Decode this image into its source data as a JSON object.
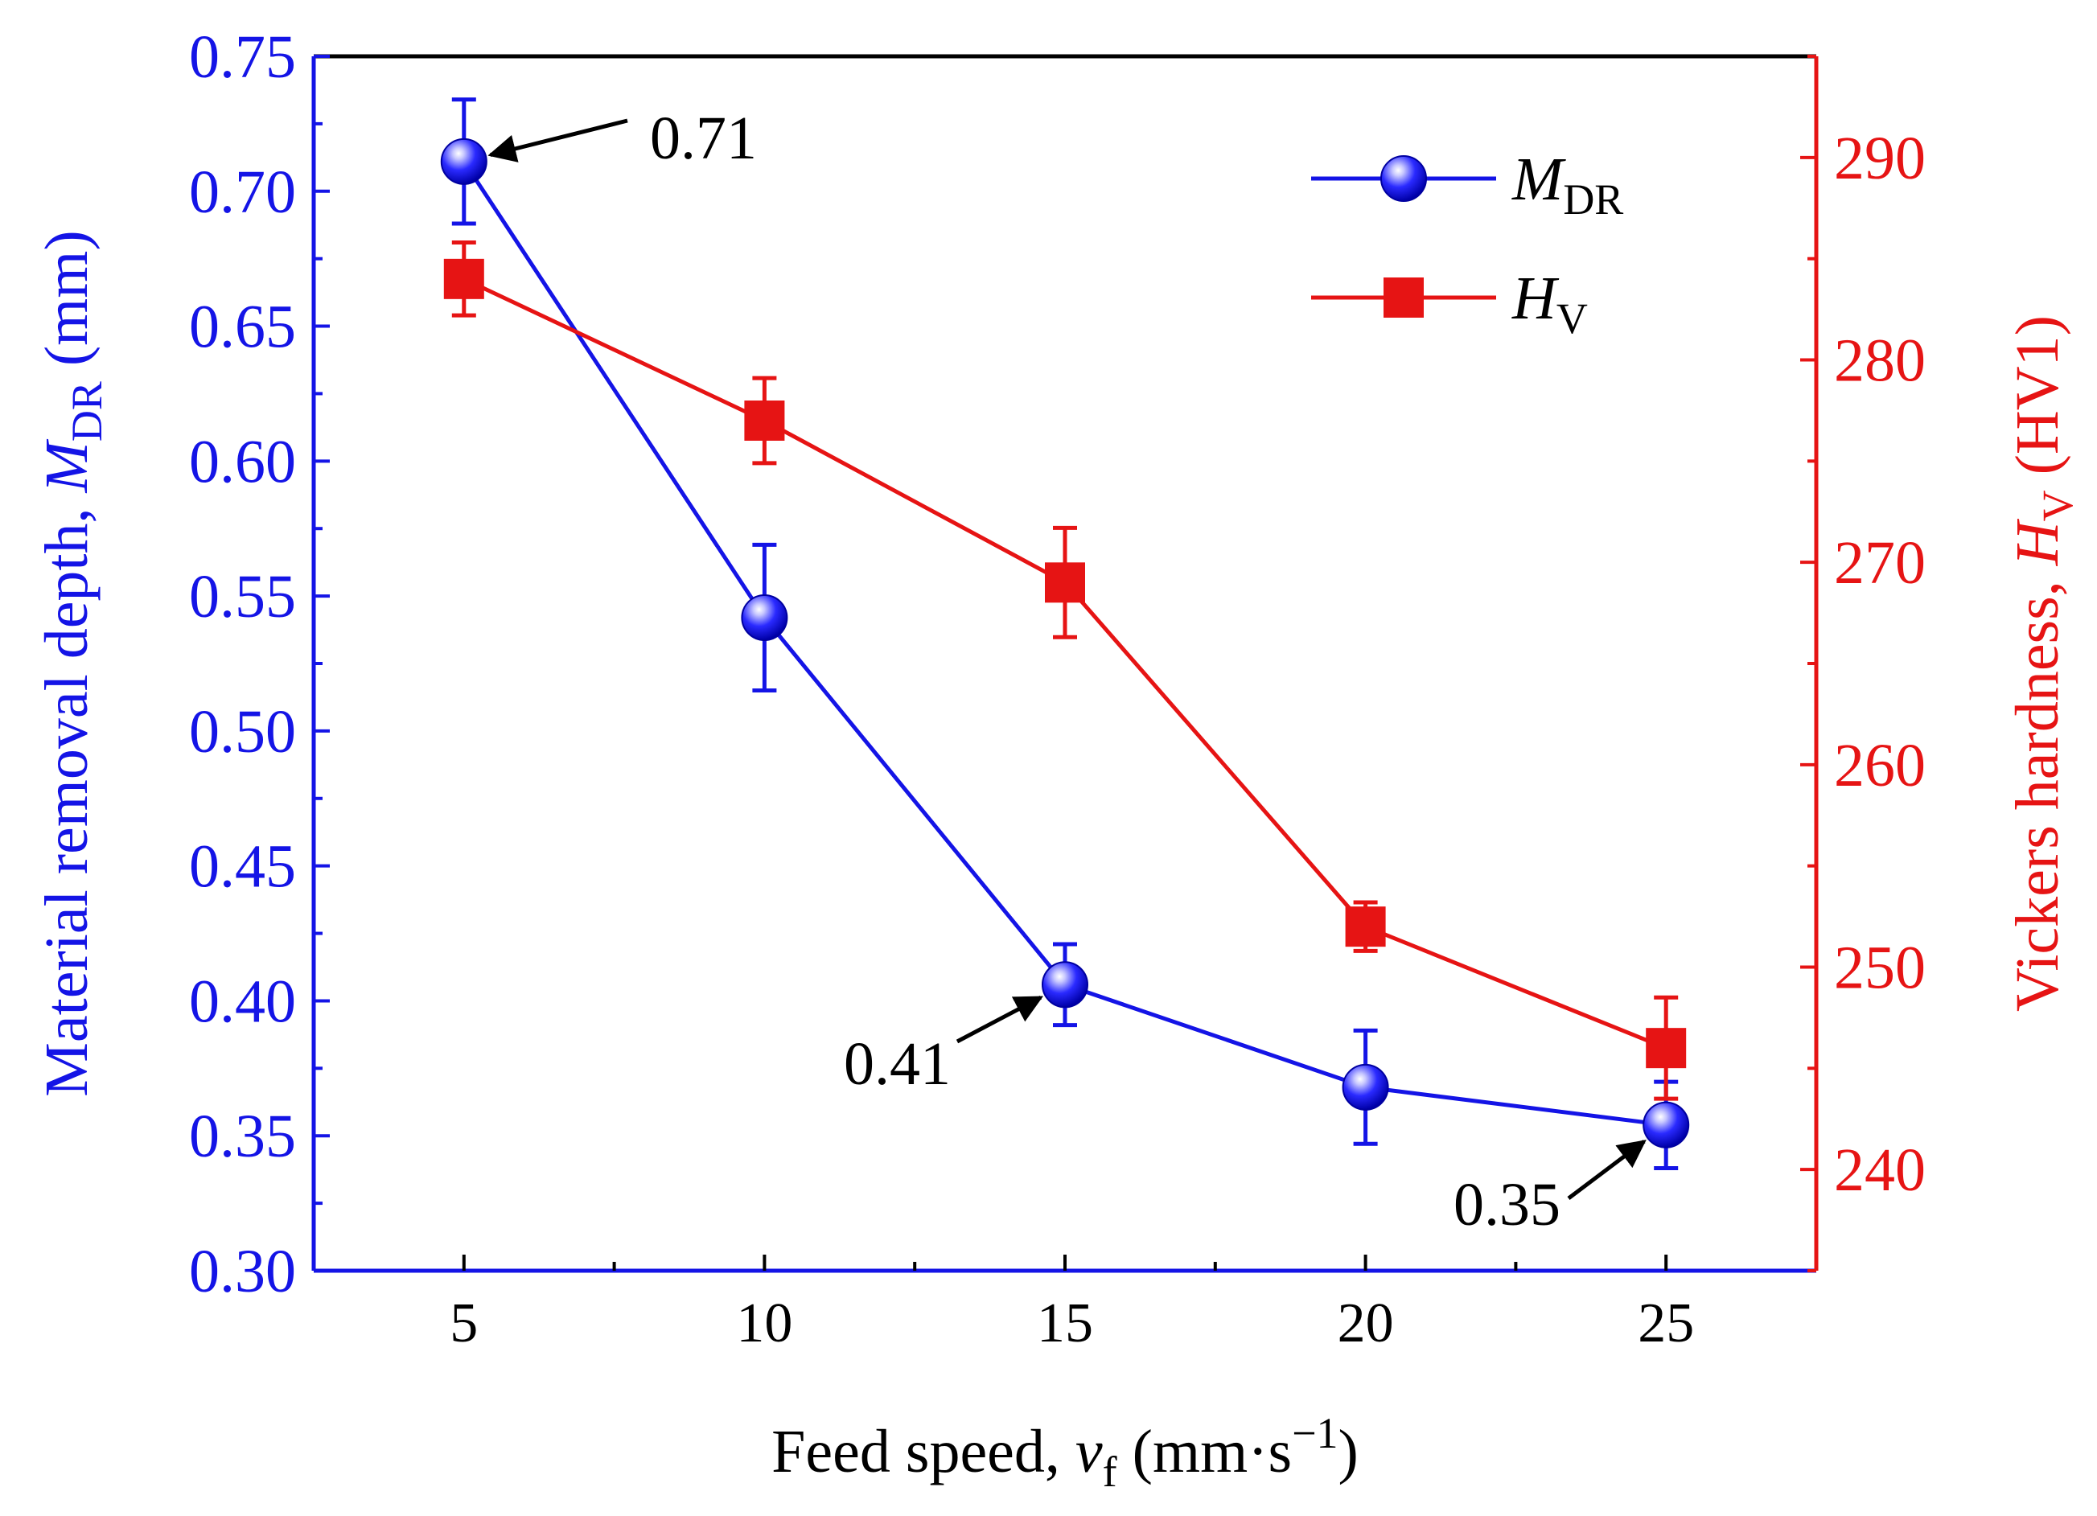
{
  "chart_data": {
    "type": "line",
    "title": "",
    "x": [
      5,
      10,
      15,
      20,
      25
    ],
    "xlim": [
      2.5,
      27.5
    ],
    "xticks": [
      "5",
      "10",
      "15",
      "20",
      "25"
    ],
    "xlabel": {
      "prefix": "Feed speed, ",
      "var": "v",
      "sub": "f",
      "unit_open": " (mm·s",
      "sup": "−1",
      "unit_close": ")"
    },
    "y_left": {
      "label": {
        "prefix": "Material removal depth, ",
        "var": "M",
        "sub": "DR",
        "unit": " (mm)"
      },
      "lim": [
        0.3,
        0.75
      ],
      "ticks": [
        "0.30",
        "0.35",
        "0.40",
        "0.45",
        "0.50",
        "0.55",
        "0.60",
        "0.65",
        "0.70",
        "0.75"
      ],
      "color": "#1414e6"
    },
    "y_right": {
      "label": {
        "prefix": "Vickers hardness, ",
        "var": "H",
        "sub": "V",
        "unit": " (HV1)"
      },
      "lim": [
        235,
        295
      ],
      "ticks": [
        "240",
        "250",
        "260",
        "270",
        "280",
        "290"
      ],
      "color": "#e61414"
    },
    "series": [
      {
        "name": "M_DR",
        "legend_var": "M",
        "legend_sub": "DR",
        "axis": "left",
        "marker": "circle",
        "color": "#1414e6",
        "values": [
          0.711,
          0.542,
          0.406,
          0.368,
          0.354
        ],
        "errors": [
          0.023,
          0.027,
          0.015,
          0.021,
          0.016
        ]
      },
      {
        "name": "H_V",
        "legend_var": "H",
        "legend_sub": "V",
        "axis": "right",
        "marker": "square",
        "color": "#e61414",
        "values": [
          284,
          277,
          269,
          252,
          246
        ],
        "errors": [
          1.8,
          2.1,
          2.7,
          1.2,
          2.5
        ]
      }
    ],
    "annotations": [
      {
        "text": "0.71",
        "series": 0,
        "index": 0
      },
      {
        "text": "0.41",
        "series": 0,
        "index": 2
      },
      {
        "text": "0.35",
        "series": 0,
        "index": 4
      }
    ],
    "legend_position": "top-right",
    "grid": false
  }
}
